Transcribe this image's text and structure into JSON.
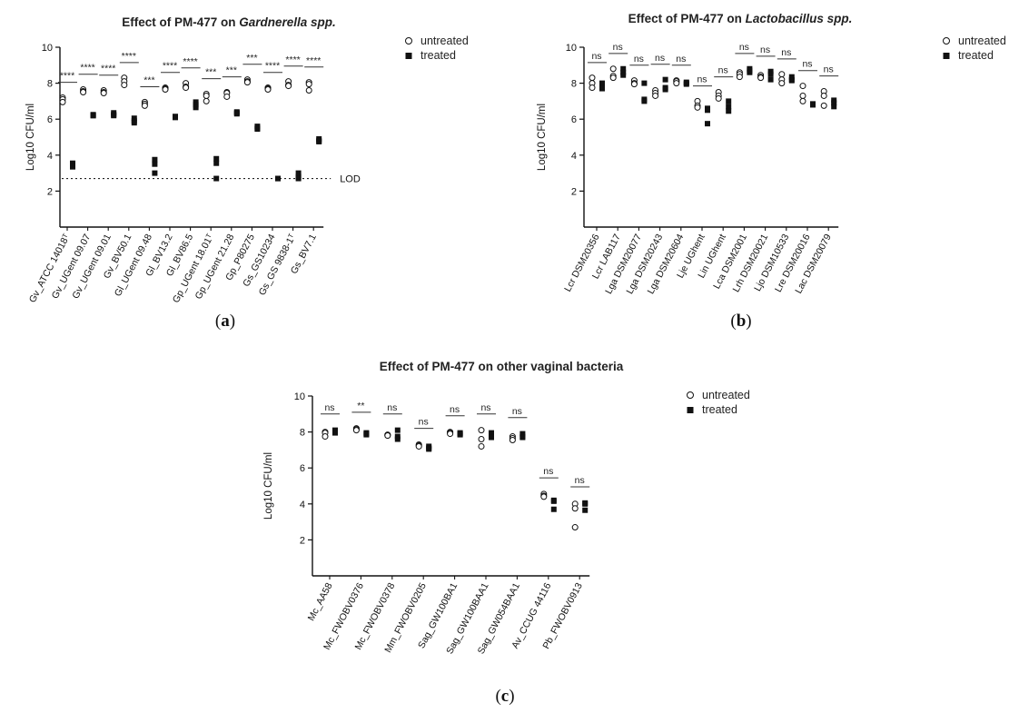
{
  "chart_data": [
    {
      "type": "scatter",
      "panel": "a",
      "panel_label": "(a)",
      "title": "Effect of PM-477 on Gardnerella spp.",
      "title_parts": [
        "Effect of PM-477 on ",
        "Gardnerella spp."
      ],
      "xlabel": "",
      "ylabel": "Log10 CFU/ml",
      "ylim": [
        0,
        10
      ],
      "yticks": [
        2,
        4,
        6,
        8,
        10
      ],
      "grid": false,
      "legend_position": "top-right",
      "series_names": [
        "untreated",
        "treated"
      ],
      "lod": {
        "y": 2.7,
        "label": "LOD"
      },
      "categories": [
        "Gv_ATCC 14018ᵀ",
        "Gv_UGent 09.07",
        "Gv_UGent 09.01",
        "Gv_BV50.1",
        "Gl_UGent 09.48",
        "Gl_BV13.2",
        "Gl_BV86.5",
        "Gp_UGent 18.01ᵀ",
        "Gp_UGent 21.28",
        "Gp_P80275",
        "Gs_GS10234",
        "Gs_GS 9838-1ᵀ",
        "Gs_BV7.1"
      ],
      "significance": [
        "****",
        "****",
        "****",
        "****",
        "***",
        "****",
        "****",
        "***",
        "***",
        "***",
        "****",
        "****",
        "****"
      ],
      "untreated": [
        [
          7.2,
          7.1,
          6.95
        ],
        [
          7.65,
          7.55,
          7.5
        ],
        [
          7.6,
          7.5,
          7.45
        ],
        [
          8.3,
          8.1,
          7.9
        ],
        [
          6.95,
          6.85,
          6.75
        ],
        [
          7.75,
          7.7,
          7.65
        ],
        [
          8.0,
          7.8,
          7.75
        ],
        [
          7.4,
          7.3,
          7.0
        ],
        [
          7.5,
          7.45,
          7.25
        ],
        [
          8.2,
          8.1,
          8.05
        ],
        [
          7.75,
          7.7,
          7.65
        ],
        [
          8.1,
          7.9,
          7.85
        ],
        [
          8.05,
          7.95,
          7.6
        ]
      ],
      "treated": [
        [
          3.55,
          3.4,
          3.35
        ],
        [
          6.25,
          6.2,
          6.2
        ],
        [
          6.35,
          6.25,
          6.2
        ],
        [
          6.05,
          5.9,
          5.8
        ],
        [
          3.75,
          3.5,
          3.0
        ],
        [
          6.15,
          6.1,
          6.1
        ],
        [
          6.95,
          6.8,
          6.65
        ],
        [
          3.8,
          3.55,
          2.7
        ],
        [
          6.4,
          6.35,
          6.3
        ],
        [
          5.6,
          5.5,
          5.45
        ],
        [
          2.7,
          2.7,
          2.7
        ],
        [
          3.0,
          2.8,
          2.7
        ],
        [
          4.9,
          4.8,
          4.75
        ]
      ]
    },
    {
      "type": "scatter",
      "panel": "b",
      "panel_label": "(b)",
      "title": "Effect of PM-477 on Lactobacillus spp.",
      "title_parts": [
        "Effect of PM-477 on ",
        "Lactobacillus spp."
      ],
      "xlabel": "",
      "ylabel": "Log10 CFU/ml",
      "ylim": [
        0,
        10
      ],
      "yticks": [
        2,
        4,
        6,
        8,
        10
      ],
      "grid": false,
      "legend_position": "top-right",
      "series_names": [
        "untreated",
        "treated"
      ],
      "categories": [
        "Lcr DSM20356",
        "Lcr LAB117",
        "Lga DSM20077",
        "Lga DSM20243",
        "Lga DSM20604",
        "Lje UGhent",
        "Lin UGhent",
        "Lca DSM2001",
        "Lrh DSM20021",
        "Ljo DSM10533",
        "Lre DSM20016",
        "Lac DSM20079"
      ],
      "significance": [
        "ns",
        "ns",
        "ns",
        "ns",
        "ns",
        "ns",
        "ns",
        "ns",
        "ns",
        "ns",
        "ns",
        "ns"
      ],
      "untreated": [
        [
          8.3,
          8.0,
          7.75
        ],
        [
          8.8,
          8.4,
          8.3
        ],
        [
          8.15,
          8.0,
          7.95
        ],
        [
          7.6,
          7.45,
          7.3
        ],
        [
          8.15,
          8.1,
          8.0
        ],
        [
          7.0,
          6.75,
          6.65
        ],
        [
          7.5,
          7.3,
          7.15
        ],
        [
          8.6,
          8.5,
          8.35
        ],
        [
          8.45,
          8.35,
          8.3
        ],
        [
          8.5,
          8.2,
          8.0
        ],
        [
          7.85,
          7.3,
          7.0
        ],
        [
          7.55,
          7.3,
          6.75
        ]
      ],
      "treated": [
        [
          8.0,
          7.75,
          7.7
        ],
        [
          8.8,
          8.6,
          8.45
        ],
        [
          8.0,
          7.1,
          7.0
        ],
        [
          8.2,
          7.75,
          7.65
        ],
        [
          8.05,
          8.0,
          7.95
        ],
        [
          6.6,
          6.5,
          5.75
        ],
        [
          7.0,
          6.7,
          6.45
        ],
        [
          8.8,
          8.7,
          8.6
        ],
        [
          8.65,
          8.5,
          8.2
        ],
        [
          8.35,
          8.2,
          8.15
        ],
        [
          6.85,
          6.8,
          6.8
        ],
        [
          7.05,
          6.9,
          6.7
        ]
      ]
    },
    {
      "type": "scatter",
      "panel": "c",
      "panel_label": "(c)",
      "title": "Effect of PM-477 on other vaginal bacteria",
      "title_parts": [
        "Effect of PM-477 on other vaginal bacteria",
        ""
      ],
      "xlabel": "",
      "ylabel": "Log10 CFU/ml",
      "ylim": [
        0,
        10
      ],
      "yticks": [
        2,
        4,
        6,
        8,
        10
      ],
      "grid": false,
      "legend_position": "top-right",
      "series_names": [
        "untreated",
        "treated"
      ],
      "categories": [
        "Mc_AA58",
        "Mc_FWOBV0376",
        "Mc_FWOBV0378",
        "Mm_FWOBV0205",
        "Sag_GW100BA1",
        "Sag_GW100BAA1",
        "Sag_GW054BAA1",
        "Av_CCUG 44116",
        "Pb_FWOBV0913"
      ],
      "significance": [
        "ns",
        "**",
        "ns",
        "ns",
        "ns",
        "ns",
        "ns",
        "ns",
        "ns"
      ],
      "untreated": [
        [
          8.0,
          7.95,
          7.75
        ],
        [
          8.2,
          8.15,
          8.1
        ],
        [
          7.85,
          7.8,
          7.8
        ],
        [
          7.3,
          7.25,
          7.2
        ],
        [
          8.0,
          7.95,
          7.9
        ],
        [
          8.1,
          7.6,
          7.2
        ],
        [
          7.75,
          7.65,
          7.55
        ],
        [
          4.55,
          4.45,
          4.4
        ],
        [
          4.0,
          3.75,
          2.7
        ]
      ],
      "treated": [
        [
          8.1,
          8.0,
          7.95
        ],
        [
          7.95,
          7.9,
          7.85
        ],
        [
          8.1,
          7.75,
          7.6
        ],
        [
          7.2,
          7.1,
          7.05
        ],
        [
          7.95,
          7.9,
          7.85
        ],
        [
          7.95,
          7.85,
          7.7
        ],
        [
          7.9,
          7.75,
          7.7
        ],
        [
          4.2,
          4.15,
          3.7
        ],
        [
          4.05,
          4.0,
          3.65
        ]
      ]
    }
  ]
}
